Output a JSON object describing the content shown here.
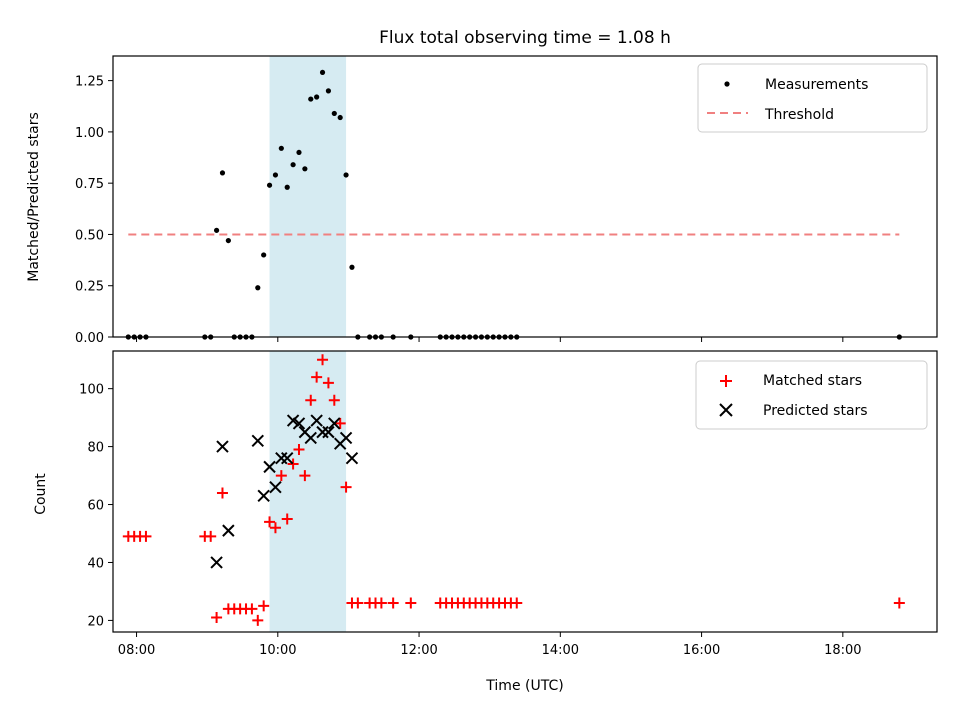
{
  "chart_data": [
    {
      "type": "scatter",
      "title": "Flux total observing time = 1.08 h",
      "xlabel": "",
      "ylabel": "Matched/Predicted stars",
      "xlim": [
        "07:40",
        "19:20"
      ],
      "ylim": [
        0.0,
        1.37
      ],
      "y_ticks": [
        "0.00",
        "0.25",
        "0.50",
        "0.75",
        "1.00",
        "1.25"
      ],
      "highlight_span": {
        "start": "09:53",
        "end": "10:58",
        "color": "#add8e6"
      },
      "legend": {
        "placement": "top-right",
        "entries": [
          "Measurements",
          "Threshold"
        ]
      },
      "series": [
        {
          "name": "Measurements",
          "marker": "dot",
          "color": "#000000",
          "points": [
            [
              "07:53",
              0.0
            ],
            [
              "07:58",
              0.0
            ],
            [
              "08:03",
              0.0
            ],
            [
              "08:08",
              0.0
            ],
            [
              "08:58",
              0.0
            ],
            [
              "09:03",
              0.0
            ],
            [
              "09:08",
              0.52
            ],
            [
              "09:13",
              0.8
            ],
            [
              "09:18",
              0.47
            ],
            [
              "09:23",
              0.0
            ],
            [
              "09:28",
              0.0
            ],
            [
              "09:33",
              0.0
            ],
            [
              "09:38",
              0.0
            ],
            [
              "09:43",
              0.24
            ],
            [
              "09:48",
              0.4
            ],
            [
              "09:53",
              0.74
            ],
            [
              "09:58",
              0.79
            ],
            [
              "10:03",
              0.92
            ],
            [
              "10:08",
              0.73
            ],
            [
              "10:13",
              0.84
            ],
            [
              "10:18",
              0.9
            ],
            [
              "10:23",
              0.82
            ],
            [
              "10:28",
              1.16
            ],
            [
              "10:33",
              1.17
            ],
            [
              "10:38",
              1.29
            ],
            [
              "10:43",
              1.2
            ],
            [
              "10:48",
              1.09
            ],
            [
              "10:53",
              1.07
            ],
            [
              "10:58",
              0.79
            ],
            [
              "11:03",
              0.34
            ],
            [
              "11:08",
              0.0
            ],
            [
              "11:18",
              0.0
            ],
            [
              "11:23",
              0.0
            ],
            [
              "11:28",
              0.0
            ],
            [
              "11:38",
              0.0
            ],
            [
              "11:53",
              0.0
            ],
            [
              "12:18",
              0.0
            ],
            [
              "12:23",
              0.0
            ],
            [
              "12:28",
              0.0
            ],
            [
              "12:33",
              0.0
            ],
            [
              "12:38",
              0.0
            ],
            [
              "12:43",
              0.0
            ],
            [
              "12:48",
              0.0
            ],
            [
              "12:53",
              0.0
            ],
            [
              "12:58",
              0.0
            ],
            [
              "13:03",
              0.0
            ],
            [
              "13:08",
              0.0
            ],
            [
              "13:13",
              0.0
            ],
            [
              "13:18",
              0.0
            ],
            [
              "13:23",
              0.0
            ],
            [
              "18:48",
              0.0
            ]
          ]
        },
        {
          "name": "Threshold",
          "marker": "dashed-line",
          "color": "#f08080",
          "points": [
            [
              "07:53",
              0.5
            ],
            [
              "18:48",
              0.5
            ]
          ]
        }
      ]
    },
    {
      "type": "scatter",
      "title": "",
      "xlabel": "Time (UTC)",
      "ylabel": "Count",
      "xlim": [
        "07:40",
        "19:20"
      ],
      "ylim": [
        16,
        113
      ],
      "x_ticks": [
        "08:00",
        "10:00",
        "12:00",
        "14:00",
        "16:00",
        "18:00"
      ],
      "y_ticks": [
        "20",
        "40",
        "60",
        "80",
        "100"
      ],
      "highlight_span": {
        "start": "09:53",
        "end": "10:58",
        "color": "#add8e6"
      },
      "legend": {
        "placement": "top-right",
        "entries": [
          "Matched stars",
          "Predicted stars"
        ]
      },
      "series": [
        {
          "name": "Matched stars",
          "marker": "plus",
          "color": "#ff0000",
          "points": [
            [
              "07:53",
              49
            ],
            [
              "07:58",
              49
            ],
            [
              "08:03",
              49
            ],
            [
              "08:08",
              49
            ],
            [
              "08:58",
              49
            ],
            [
              "09:03",
              49
            ],
            [
              "09:08",
              21
            ],
            [
              "09:13",
              64
            ],
            [
              "09:18",
              24
            ],
            [
              "09:23",
              24
            ],
            [
              "09:28",
              24
            ],
            [
              "09:33",
              24
            ],
            [
              "09:38",
              24
            ],
            [
              "09:43",
              20
            ],
            [
              "09:48",
              25
            ],
            [
              "09:53",
              54
            ],
            [
              "09:58",
              52
            ],
            [
              "10:03",
              70
            ],
            [
              "10:08",
              55
            ],
            [
              "10:13",
              74
            ],
            [
              "10:18",
              79
            ],
            [
              "10:23",
              70
            ],
            [
              "10:28",
              96
            ],
            [
              "10:33",
              104
            ],
            [
              "10:38",
              110
            ],
            [
              "10:43",
              102
            ],
            [
              "10:48",
              96
            ],
            [
              "10:53",
              88
            ],
            [
              "10:58",
              66
            ],
            [
              "11:03",
              26
            ],
            [
              "11:08",
              26
            ],
            [
              "11:18",
              26
            ],
            [
              "11:23",
              26
            ],
            [
              "11:28",
              26
            ],
            [
              "11:38",
              26
            ],
            [
              "11:53",
              26
            ],
            [
              "12:18",
              26
            ],
            [
              "12:23",
              26
            ],
            [
              "12:28",
              26
            ],
            [
              "12:33",
              26
            ],
            [
              "12:38",
              26
            ],
            [
              "12:43",
              26
            ],
            [
              "12:48",
              26
            ],
            [
              "12:53",
              26
            ],
            [
              "12:58",
              26
            ],
            [
              "13:03",
              26
            ],
            [
              "13:08",
              26
            ],
            [
              "13:13",
              26
            ],
            [
              "13:18",
              26
            ],
            [
              "13:23",
              26
            ],
            [
              "18:48",
              26
            ]
          ]
        },
        {
          "name": "Predicted stars",
          "marker": "x",
          "color": "#000000",
          "points": [
            [
              "09:08",
              40
            ],
            [
              "09:13",
              80
            ],
            [
              "09:18",
              51
            ],
            [
              "09:43",
              82
            ],
            [
              "09:48",
              63
            ],
            [
              "09:53",
              73
            ],
            [
              "09:58",
              66
            ],
            [
              "10:03",
              76
            ],
            [
              "10:08",
              76
            ],
            [
              "10:13",
              89
            ],
            [
              "10:18",
              88
            ],
            [
              "10:23",
              85
            ],
            [
              "10:28",
              83
            ],
            [
              "10:33",
              89
            ],
            [
              "10:38",
              85
            ],
            [
              "10:43",
              85
            ],
            [
              "10:48",
              88
            ],
            [
              "10:53",
              81
            ],
            [
              "10:58",
              83
            ],
            [
              "11:03",
              76
            ]
          ]
        }
      ]
    }
  ]
}
